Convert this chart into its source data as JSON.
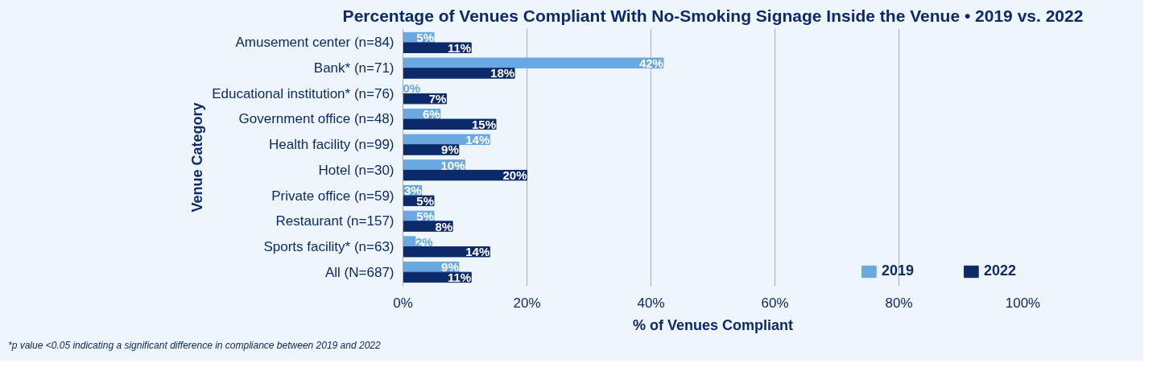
{
  "chart_data": {
    "type": "bar",
    "orientation": "horizontal",
    "title": "Percentage of Venues Compliant With No-Smoking Signage Inside the Venue • 2019 vs. 2022",
    "xlabel": "% of Venues Compliant",
    "ylabel": "Venue Category",
    "categories": [
      "Amusement center (n=84)",
      "Bank* (n=71)",
      "Educational institution* (n=76)",
      "Government office (n=48)",
      "Health facility (n=99)",
      "Hotel (n=30)",
      "Private office (n=59)",
      "Restaurant (n=157)",
      "Sports facility* (n=63)",
      "All (N=687)"
    ],
    "series": [
      {
        "name": "2019",
        "color": "#6aa8e2",
        "values": [
          5,
          42,
          0,
          6,
          14,
          10,
          3,
          5,
          2,
          9
        ],
        "value_labels": [
          "5%",
          "42%",
          "0%",
          "6%",
          "14%",
          "10%",
          "3%",
          "5%",
          "2%",
          "9%"
        ]
      },
      {
        "name": "2022",
        "color": "#0c2a6a",
        "values": [
          11,
          18,
          7,
          15,
          9,
          20,
          5,
          8,
          14,
          11
        ],
        "value_labels": [
          "11%",
          "18%",
          "7%",
          "15%",
          "9%",
          "20%",
          "5%",
          "8%",
          "14%",
          "11%"
        ]
      }
    ],
    "xlim": [
      0,
      100
    ],
    "xticks": [
      {
        "value": 0,
        "label": "0%"
      },
      {
        "value": 20,
        "label": "20%"
      },
      {
        "value": 40,
        "label": "40%"
      },
      {
        "value": 60,
        "label": "60%"
      },
      {
        "value": 80,
        "label": "80%"
      },
      {
        "value": 100,
        "label": "100%"
      }
    ],
    "grid": "x",
    "legend": "bottom right",
    "annotations": [
      "*p value <0.05 indicating a significant difference in compliance between 2019 and 2022"
    ]
  }
}
